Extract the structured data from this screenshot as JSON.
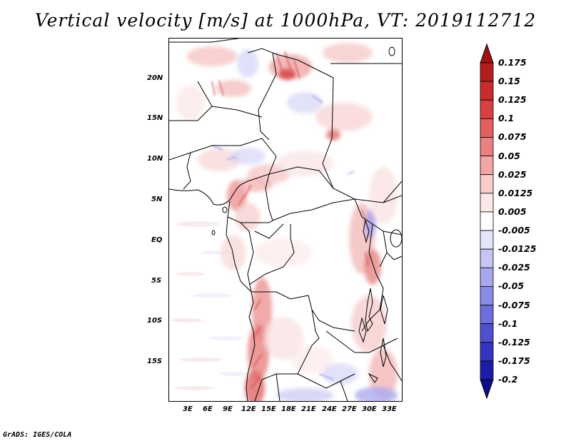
{
  "title": "Vertical velocity [m/s] at 1000hPa, VT: 2019112712",
  "footer": "GrADS: IGES/COLA",
  "map": {
    "lon_range": [
      -1,
      35
    ],
    "lat_range": [
      -19,
      25
    ],
    "lon_ticks": [
      "3E",
      "6E",
      "9E",
      "12E",
      "15E",
      "18E",
      "21E",
      "24E",
      "27E",
      "30E",
      "33E"
    ],
    "lat_ticks": [
      "20N",
      "15N",
      "10N",
      "5N",
      "EQ",
      "5S",
      "10S",
      "15S"
    ]
  },
  "colorbar": {
    "labels": [
      "0.175",
      "0.15",
      "0.125",
      "0.1",
      "0.075",
      "0.05",
      "0.025",
      "0.0125",
      "0.005",
      "-0.005",
      "-0.0125",
      "-0.025",
      "-0.05",
      "-0.075",
      "-0.1",
      "-0.125",
      "-0.175",
      "-0.2"
    ],
    "colors": [
      "#a01212",
      "#b51d1d",
      "#c92c2c",
      "#d84040",
      "#e26060",
      "#ea8080",
      "#f2a6a6",
      "#f8cccc",
      "#fde8e8",
      "#ffffff",
      "#e4e4fb",
      "#c6c6f5",
      "#a8a8ef",
      "#8c8ce6",
      "#6e6edd",
      "#5050cf",
      "#3434bf",
      "#1c1ca8",
      "#0c0c8c"
    ]
  }
}
